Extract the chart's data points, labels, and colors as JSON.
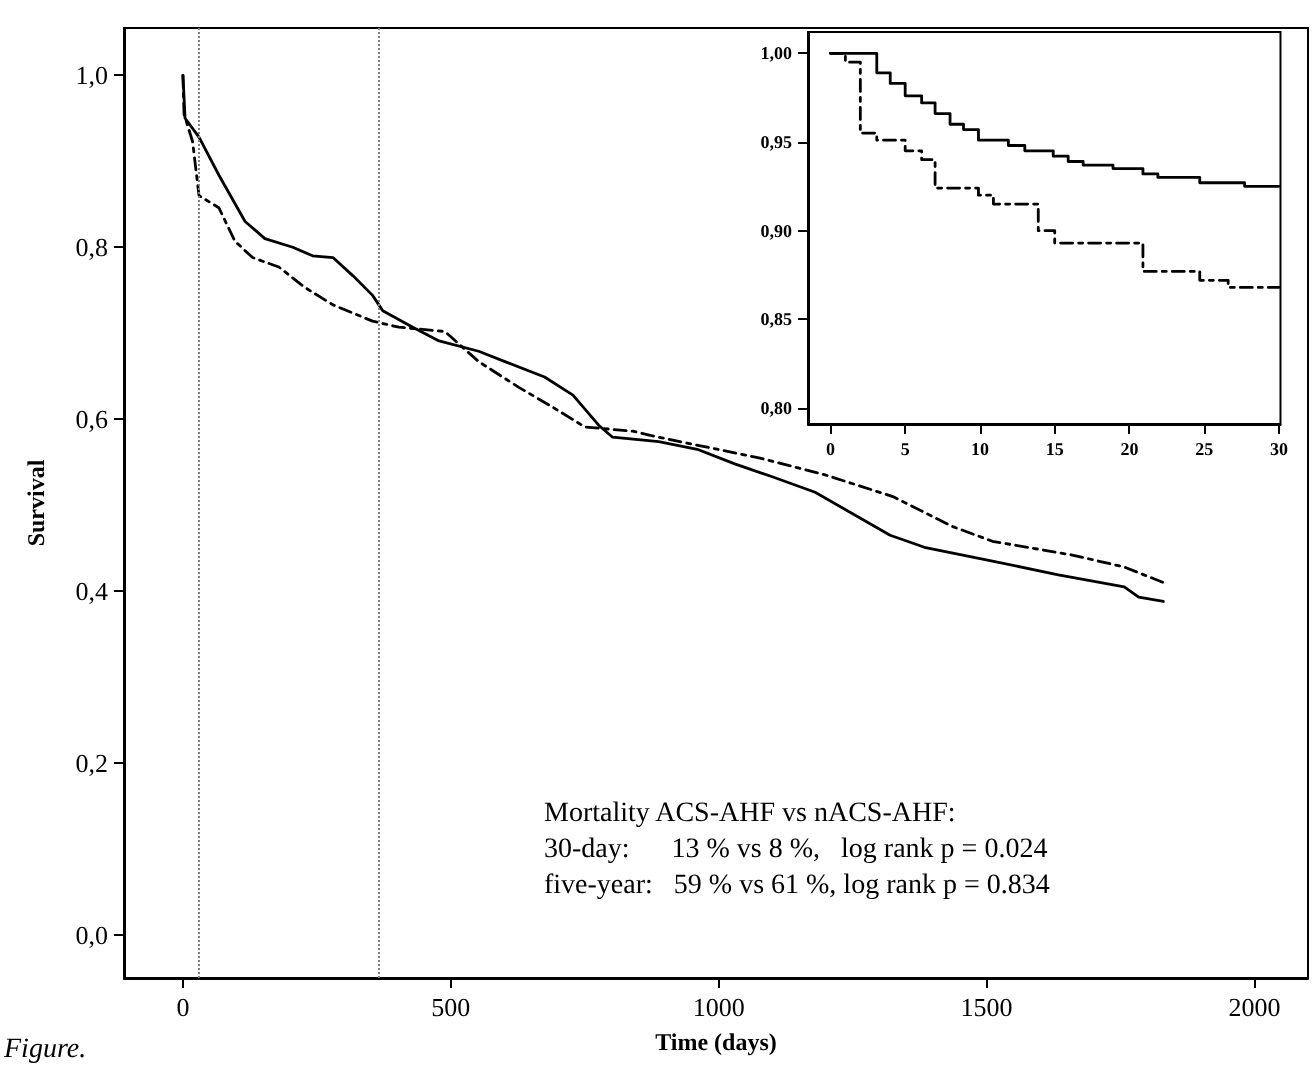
{
  "chart_data": [
    {
      "type": "line",
      "xlabel": "Time (days)",
      "ylabel": "Survival",
      "xlim": [
        -110,
        2100
      ],
      "ylim": [
        -0.05,
        1.055
      ],
      "xticks": [
        0,
        500,
        1000,
        1500,
        2000
      ],
      "yticks": [
        {
          "value": 0,
          "label": "0,0"
        },
        {
          "value": 0.2,
          "label": "0,2"
        },
        {
          "value": 0.4,
          "label": "0,4"
        },
        {
          "value": 0.6,
          "label": "0,6"
        },
        {
          "value": 0.8,
          "label": "0,8"
        },
        {
          "value": 1,
          "label": "1,0"
        }
      ],
      "grid": false,
      "marker": "none",
      "ref_lines": [
        {
          "axis": "x",
          "value": 30,
          "color": "#808080",
          "line_style": "dotted"
        },
        {
          "axis": "x",
          "value": 365,
          "color": "#808080",
          "line_style": "dotted"
        }
      ],
      "annotations": [
        "Mortality ACS-AHF vs nACS-AHF:",
        "30-day:      13 % vs 8 %,   log rank p = 0.024",
        "five-year:   59 % vs 61 %, log rank p = 0.834",
        "Figure."
      ],
      "series": [
        {
          "color": "#000000",
          "line_style": "solid",
          "x": [
            0,
            4,
            30,
            67,
            116,
            153,
            205,
            242,
            280,
            317,
            354,
            373,
            429,
            478,
            552,
            601,
            675,
            728,
            776,
            802,
            888,
            960,
            1030,
            1100,
            1180,
            1250,
            1320,
            1384,
            1511,
            1634,
            1757,
            1784,
            1830
          ],
          "values": [
            1.0,
            0.95,
            0.928,
            0.884,
            0.83,
            0.81,
            0.8,
            0.79,
            0.788,
            0.767,
            0.744,
            0.726,
            0.707,
            0.691,
            0.679,
            0.667,
            0.649,
            0.628,
            0.593,
            0.579,
            0.574,
            0.565,
            0.548,
            0.533,
            0.515,
            0.49,
            0.465,
            0.451,
            0.435,
            0.419,
            0.405,
            0.393,
            0.388
          ]
        },
        {
          "color": "#000000",
          "line_style": "dashed",
          "x": [
            0,
            2,
            18,
            30,
            67,
            97,
            130,
            179,
            228,
            280,
            354,
            403,
            489,
            552,
            627,
            690,
            750,
            840,
            888,
            1075,
            1200,
            1325,
            1437,
            1511,
            1660,
            1757,
            1830
          ],
          "values": [
            1.0,
            0.955,
            0.923,
            0.86,
            0.846,
            0.807,
            0.788,
            0.777,
            0.753,
            0.733,
            0.714,
            0.707,
            0.702,
            0.667,
            0.637,
            0.614,
            0.591,
            0.586,
            0.579,
            0.555,
            0.535,
            0.51,
            0.475,
            0.458,
            0.442,
            0.428,
            0.41
          ]
        }
      ]
    },
    {
      "type": "step",
      "xlim": [
        -1.5,
        30.1
      ],
      "ylim": [
        0.791,
        1.012
      ],
      "xticks": [
        0,
        5,
        10,
        15,
        20,
        25,
        30
      ],
      "yticks": [
        {
          "value": 0.8,
          "label": "0,80"
        },
        {
          "value": 0.85,
          "label": "0,85"
        },
        {
          "value": 0.9,
          "label": "0,90"
        },
        {
          "value": 0.95,
          "label": "0,95"
        },
        {
          "value": 1,
          "label": "1,00"
        }
      ],
      "grid": false,
      "marker": "none",
      "series": [
        {
          "color": "#000000",
          "line_style": "solid",
          "x": [
            0,
            3.1,
            4.0,
            5.0,
            6.1,
            7.0,
            8.0,
            8.9,
            9.9,
            11.9,
            13.0,
            14.9,
            15.9,
            16.9,
            18.9,
            20.9,
            21.9,
            24.7,
            27.7,
            30
          ],
          "values": [
            1.0,
            0.989,
            0.983,
            0.976,
            0.972,
            0.966,
            0.96,
            0.957,
            0.951,
            0.948,
            0.945,
            0.942,
            0.939,
            0.937,
            0.935,
            0.932,
            0.93,
            0.927,
            0.925,
            0.925
          ]
        },
        {
          "color": "#000000",
          "line_style": "dashed",
          "x": [
            0,
            1.0,
            2.0,
            3.1,
            5.0,
            6.1,
            7.0,
            9.9,
            10.9,
            13.9,
            15.0,
            20.9,
            24.7,
            26.6,
            30
          ],
          "values": [
            1.0,
            0.995,
            0.955,
            0.951,
            0.945,
            0.94,
            0.924,
            0.92,
            0.915,
            0.9,
            0.893,
            0.877,
            0.872,
            0.868,
            0.868
          ]
        }
      ]
    }
  ]
}
